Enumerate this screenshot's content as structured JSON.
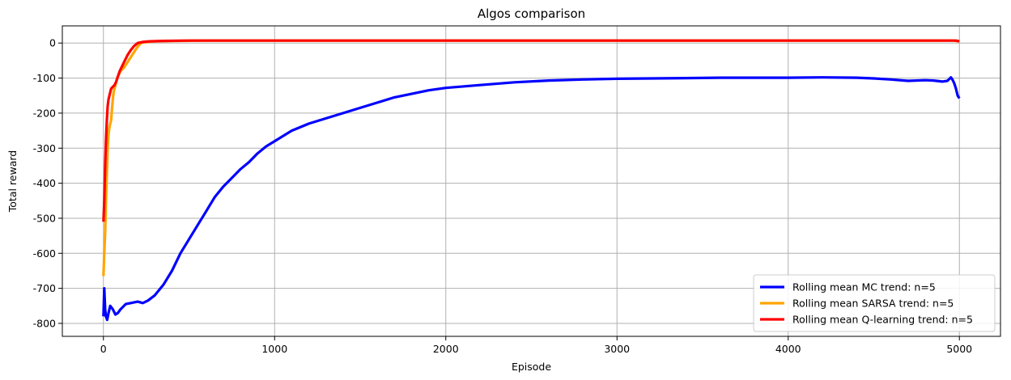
{
  "chart_data": {
    "type": "line",
    "title": "Algos comparison",
    "xlabel": "Episode",
    "ylabel": "Total reward",
    "xlim": [
      -240,
      5240
    ],
    "ylim": [
      -837,
      49
    ],
    "xticks": [
      0,
      1000,
      2000,
      3000,
      4000,
      5000
    ],
    "yticks": [
      0,
      -100,
      -200,
      -300,
      -400,
      -500,
      -600,
      -700,
      -800
    ],
    "grid": true,
    "legend_position": "lower-right",
    "series": [
      {
        "name": "Rolling mean MC trend: n=5",
        "color": "#0000ff",
        "points": [
          [
            0,
            -780
          ],
          [
            5,
            -700
          ],
          [
            10,
            -760
          ],
          [
            15,
            -780
          ],
          [
            22,
            -790
          ],
          [
            30,
            -770
          ],
          [
            40,
            -750
          ],
          [
            55,
            -760
          ],
          [
            70,
            -775
          ],
          [
            85,
            -770
          ],
          [
            100,
            -760
          ],
          [
            130,
            -745
          ],
          [
            160,
            -742
          ],
          [
            200,
            -738
          ],
          [
            230,
            -742
          ],
          [
            260,
            -735
          ],
          [
            300,
            -720
          ],
          [
            350,
            -690
          ],
          [
            400,
            -650
          ],
          [
            450,
            -600
          ],
          [
            500,
            -560
          ],
          [
            550,
            -520
          ],
          [
            600,
            -480
          ],
          [
            650,
            -440
          ],
          [
            700,
            -410
          ],
          [
            750,
            -385
          ],
          [
            800,
            -360
          ],
          [
            850,
            -340
          ],
          [
            900,
            -315
          ],
          [
            950,
            -295
          ],
          [
            1000,
            -280
          ],
          [
            1100,
            -250
          ],
          [
            1200,
            -230
          ],
          [
            1300,
            -215
          ],
          [
            1400,
            -200
          ],
          [
            1500,
            -185
          ],
          [
            1600,
            -170
          ],
          [
            1700,
            -155
          ],
          [
            1800,
            -145
          ],
          [
            1900,
            -135
          ],
          [
            2000,
            -128
          ],
          [
            2200,
            -120
          ],
          [
            2400,
            -112
          ],
          [
            2600,
            -107
          ],
          [
            2800,
            -104
          ],
          [
            3000,
            -102
          ],
          [
            3200,
            -101
          ],
          [
            3400,
            -100
          ],
          [
            3600,
            -99
          ],
          [
            3800,
            -99
          ],
          [
            4000,
            -99
          ],
          [
            4200,
            -98
          ],
          [
            4400,
            -99
          ],
          [
            4500,
            -101
          ],
          [
            4600,
            -104
          ],
          [
            4700,
            -108
          ],
          [
            4800,
            -106
          ],
          [
            4850,
            -107
          ],
          [
            4900,
            -110
          ],
          [
            4930,
            -108
          ],
          [
            4950,
            -98
          ],
          [
            4960,
            -105
          ],
          [
            4970,
            -115
          ],
          [
            4980,
            -130
          ],
          [
            4990,
            -150
          ],
          [
            5000,
            -158
          ]
        ]
      },
      {
        "name": "Rolling mean SARSA trend: n=5",
        "color": "#ffa500",
        "points": [
          [
            0,
            -665
          ],
          [
            5,
            -600
          ],
          [
            10,
            -540
          ],
          [
            15,
            -450
          ],
          [
            20,
            -370
          ],
          [
            25,
            -300
          ],
          [
            30,
            -260
          ],
          [
            35,
            -240
          ],
          [
            40,
            -230
          ],
          [
            45,
            -220
          ],
          [
            50,
            -190
          ],
          [
            55,
            -160
          ],
          [
            60,
            -140
          ],
          [
            70,
            -120
          ],
          [
            80,
            -100
          ],
          [
            90,
            -90
          ],
          [
            100,
            -80
          ],
          [
            120,
            -70
          ],
          [
            140,
            -55
          ],
          [
            160,
            -40
          ],
          [
            180,
            -25
          ],
          [
            200,
            -10
          ],
          [
            220,
            0
          ],
          [
            250,
            3
          ],
          [
            300,
            5
          ],
          [
            400,
            6
          ],
          [
            600,
            7
          ],
          [
            1000,
            7
          ],
          [
            2000,
            7
          ],
          [
            3000,
            7
          ],
          [
            4000,
            7
          ],
          [
            4900,
            7
          ],
          [
            4960,
            7
          ],
          [
            5000,
            5
          ]
        ]
      },
      {
        "name": "Rolling mean Q-learning trend: n=5",
        "color": "#ff0000",
        "points": [
          [
            0,
            -510
          ],
          [
            5,
            -450
          ],
          [
            10,
            -350
          ],
          [
            15,
            -280
          ],
          [
            20,
            -220
          ],
          [
            25,
            -180
          ],
          [
            30,
            -160
          ],
          [
            35,
            -150
          ],
          [
            40,
            -140
          ],
          [
            45,
            -130
          ],
          [
            55,
            -125
          ],
          [
            65,
            -120
          ],
          [
            75,
            -110
          ],
          [
            85,
            -95
          ],
          [
            95,
            -80
          ],
          [
            110,
            -65
          ],
          [
            125,
            -50
          ],
          [
            140,
            -35
          ],
          [
            160,
            -20
          ],
          [
            180,
            -8
          ],
          [
            200,
            0
          ],
          [
            230,
            3
          ],
          [
            270,
            5
          ],
          [
            350,
            6
          ],
          [
            500,
            7
          ],
          [
            1000,
            7
          ],
          [
            2000,
            7
          ],
          [
            3000,
            7
          ],
          [
            4000,
            7
          ],
          [
            4950,
            7
          ],
          [
            4980,
            7
          ],
          [
            5000,
            5
          ]
        ]
      }
    ]
  }
}
